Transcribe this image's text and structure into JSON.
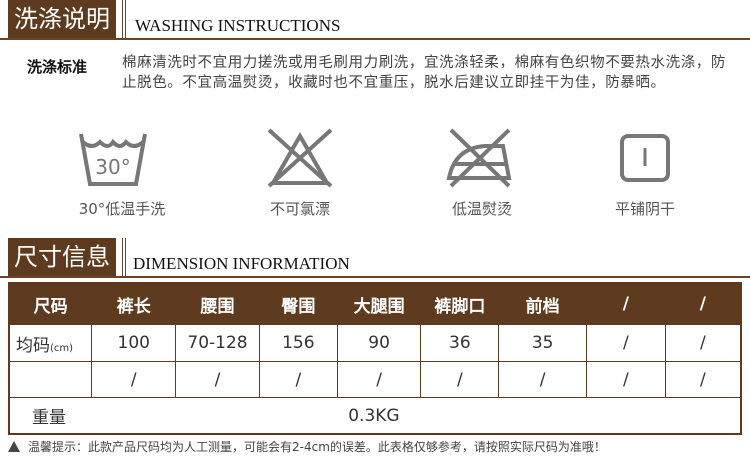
{
  "washing": {
    "title_cn": "洗涤说明",
    "title_en": "WASHING INSTRUCTIONS",
    "label": "洗涤标准",
    "text": "棉麻清洗时不宜用力搓洗或用毛刷用力刷洗，宜洗涤轻柔，棉麻有色织物不要热水洗涤，防止脱色。不宜高温熨烫，收藏时也不宜重压，脱水后建议立即挂干为佳，防暴晒。",
    "icons": [
      {
        "icon": "hand-wash-30-icon",
        "glyph": "30°",
        "label": "30°低温手洗"
      },
      {
        "icon": "no-bleach-icon",
        "label": "不可氯漂"
      },
      {
        "icon": "low-iron-icon",
        "label": "低温熨烫"
      },
      {
        "icon": "dry-flat-shade-icon",
        "label": "平铺阴干"
      }
    ]
  },
  "dimension": {
    "title_cn": "尺寸信息",
    "title_en": "DIMENSION INFORMATION",
    "headers": [
      "尺码",
      "裤长",
      "腰围",
      "臀围",
      "大腿围",
      "裤脚口",
      "前档",
      "/",
      "/"
    ],
    "row1": {
      "label": "均码",
      "unit": "(cm)",
      "values": [
        "100",
        "70-128",
        "156",
        "90",
        "36",
        "35",
        "/",
        "/"
      ]
    },
    "row2": {
      "label": "",
      "values": [
        "/",
        "/",
        "/",
        "/",
        "/",
        "/",
        "/",
        "/"
      ]
    },
    "weight": {
      "label": "重量",
      "value": "0.3KG"
    }
  },
  "note": "温馨提示：此款产品尺码均为人工测量，可能会有2-4cm的误差。此表格仅够参考，请按照实际尺码为准哦！",
  "colors": {
    "brand_brown": "#5e3b1f",
    "icon_gray": "#777777"
  }
}
